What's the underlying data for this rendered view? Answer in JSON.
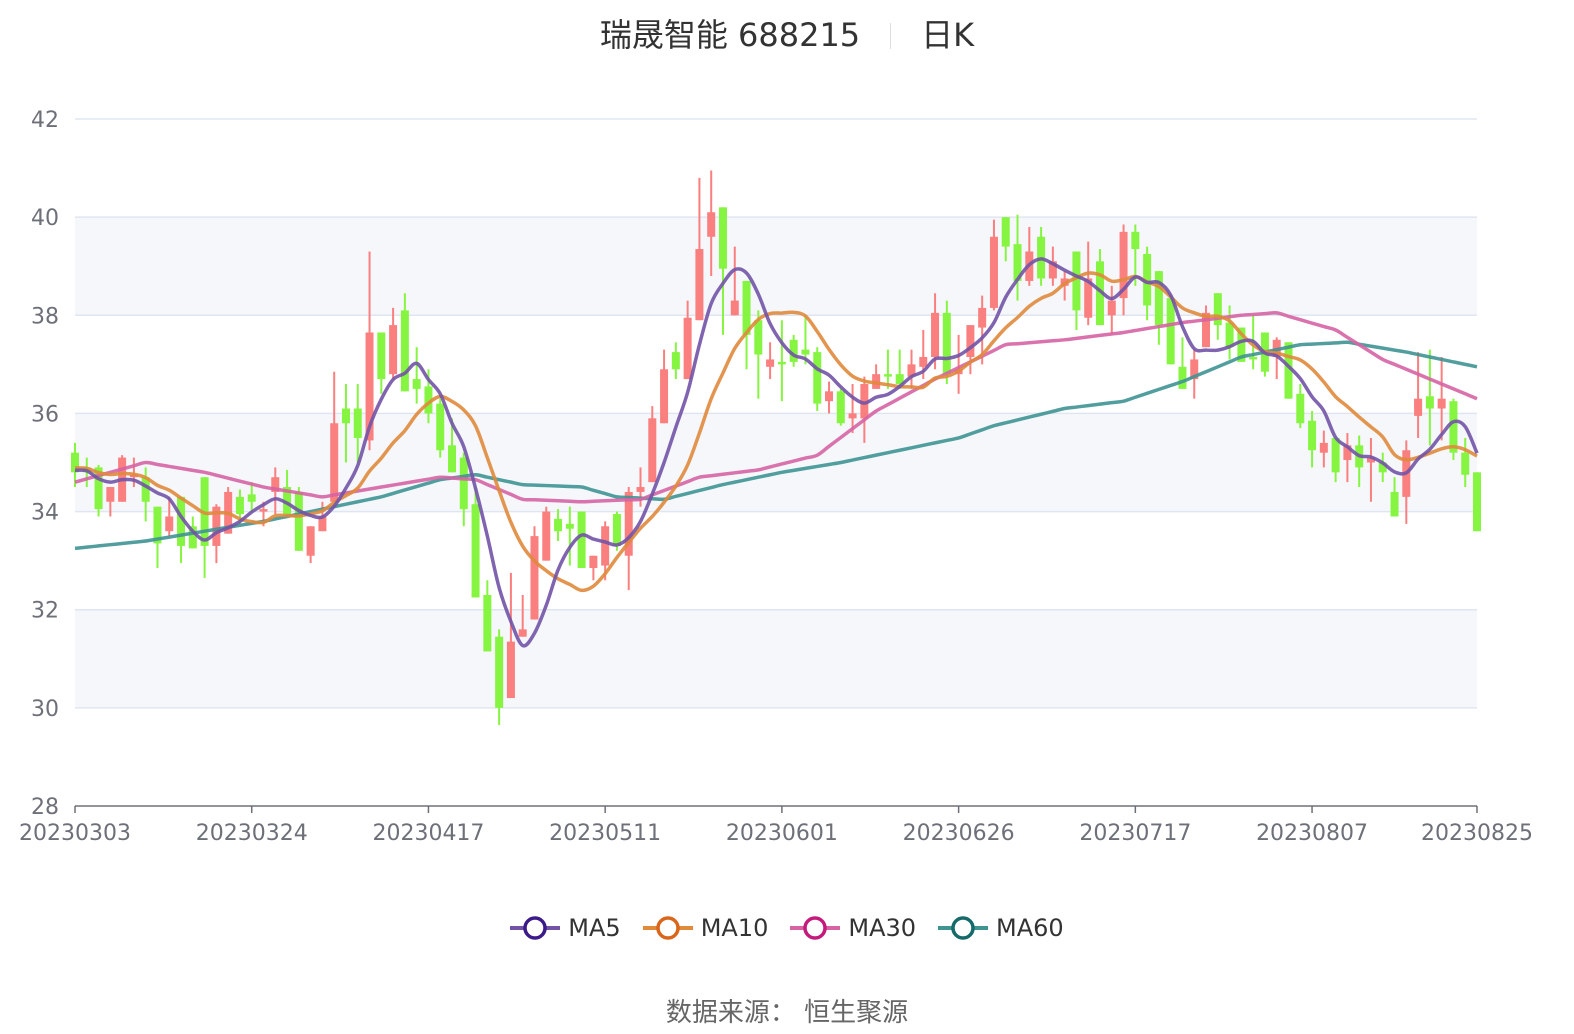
{
  "title": {
    "name": "瑞晟智能 688215",
    "period": "日K"
  },
  "source": "数据来源： 恒生聚源",
  "colors": {
    "up": "#fa7f7f",
    "down": "#86f542",
    "band": "#f5f7fb",
    "grid": "#e0e6f1",
    "axis": "#6e7079",
    "ma5": "#7253a6",
    "ma10": "#e08a3c",
    "ma30": "#d664a4",
    "ma60": "#3f9393"
  },
  "legend": [
    {
      "name": "MA5",
      "color": "#7253a6",
      "ring": "#3d1a8a"
    },
    {
      "name": "MA10",
      "color": "#e08a3c",
      "ring": "#d9661a"
    },
    {
      "name": "MA30",
      "color": "#d664a4",
      "ring": "#c41a7c"
    },
    {
      "name": "MA60",
      "color": "#3f9393",
      "ring": "#166a6a"
    }
  ],
  "chart_data": {
    "type": "candlestick",
    "title": "瑞晟智能 688215 日K",
    "ylim": [
      28,
      42
    ],
    "yticks": [
      "42",
      "40",
      "38",
      "36",
      "34",
      "32",
      "30",
      "28"
    ],
    "xtick_labels": [
      {
        "day": 0,
        "label": "20230303"
      },
      {
        "day": 15,
        "label": "20230324"
      },
      {
        "day": 30,
        "label": "20230417"
      },
      {
        "day": 45,
        "label": "20230511"
      },
      {
        "day": 60,
        "label": "20230601"
      },
      {
        "day": 75,
        "label": "20230626"
      },
      {
        "day": 90,
        "label": "20230717"
      },
      {
        "day": 105,
        "label": "20230807"
      },
      {
        "day": 119,
        "label": "20230825"
      }
    ],
    "ohlc_format": [
      "open",
      "close",
      "low",
      "high"
    ],
    "candles": [
      [
        35.2,
        34.8,
        34.5,
        35.4
      ],
      [
        34.9,
        34.8,
        34.5,
        35.1
      ],
      [
        34.9,
        34.05,
        33.9,
        34.95
      ],
      [
        34.2,
        34.5,
        33.9,
        34.5
      ],
      [
        34.2,
        35.1,
        34.2,
        35.15
      ],
      [
        34.7,
        34.75,
        34.5,
        35.1
      ],
      [
        34.7,
        34.2,
        33.8,
        34.9
      ],
      [
        34.1,
        33.35,
        32.85,
        34.1
      ],
      [
        33.6,
        33.9,
        33.5,
        34.3
      ],
      [
        34.3,
        33.3,
        32.95,
        34.3
      ],
      [
        33.7,
        33.25,
        33.25,
        33.9
      ],
      [
        34.7,
        33.3,
        32.65,
        34.7
      ],
      [
        33.3,
        34.1,
        32.95,
        34.15
      ],
      [
        33.55,
        34.4,
        33.55,
        34.5
      ],
      [
        34.3,
        33.95,
        33.75,
        34.45
      ],
      [
        34.35,
        34.2,
        34.0,
        34.6
      ],
      [
        34.0,
        34.05,
        33.7,
        34.2
      ],
      [
        34.4,
        34.7,
        33.95,
        34.9
      ],
      [
        34.5,
        33.95,
        33.9,
        34.85
      ],
      [
        34.4,
        33.2,
        33.2,
        34.5
      ],
      [
        33.1,
        33.7,
        32.95,
        33.7
      ],
      [
        33.6,
        33.9,
        33.6,
        34.2
      ],
      [
        34.2,
        35.8,
        34.2,
        36.85
      ],
      [
        36.1,
        35.8,
        35.0,
        36.6
      ],
      [
        36.1,
        35.5,
        35.0,
        36.6
      ],
      [
        35.45,
        37.65,
        35.25,
        39.3
      ],
      [
        37.65,
        36.7,
        36.4,
        37.65
      ],
      [
        36.8,
        37.8,
        36.7,
        38.15
      ],
      [
        38.1,
        36.45,
        36.45,
        38.45
      ],
      [
        36.7,
        36.5,
        36.2,
        37.35
      ],
      [
        36.55,
        36.0,
        35.8,
        36.9
      ],
      [
        36.2,
        35.25,
        35.1,
        36.3
      ],
      [
        35.35,
        34.8,
        34.8,
        35.9
      ],
      [
        35.1,
        34.05,
        33.7,
        35.2
      ],
      [
        34.15,
        32.25,
        32.25,
        34.5
      ],
      [
        32.3,
        31.15,
        31.15,
        32.6
      ],
      [
        31.45,
        30.0,
        29.65,
        31.6
      ],
      [
        30.2,
        31.35,
        30.2,
        32.75
      ],
      [
        31.45,
        31.6,
        31.45,
        32.3
      ],
      [
        31.8,
        33.5,
        31.8,
        33.7
      ],
      [
        33.0,
        34.0,
        33.0,
        34.1
      ],
      [
        33.85,
        33.6,
        33.4,
        34.05
      ],
      [
        33.75,
        33.65,
        32.9,
        34.1
      ],
      [
        34.0,
        32.85,
        32.85,
        34.0
      ],
      [
        32.85,
        33.1,
        32.6,
        33.1
      ],
      [
        32.9,
        33.7,
        32.6,
        33.8
      ],
      [
        33.95,
        33.3,
        33.2,
        34.0
      ],
      [
        33.1,
        34.4,
        32.4,
        34.5
      ],
      [
        34.4,
        34.5,
        34.1,
        34.9
      ],
      [
        34.6,
        35.9,
        34.6,
        36.15
      ],
      [
        35.8,
        36.9,
        35.8,
        37.3
      ],
      [
        37.25,
        36.9,
        36.7,
        37.45
      ],
      [
        36.7,
        37.95,
        36.7,
        38.3
      ],
      [
        37.9,
        39.35,
        37.9,
        40.8
      ],
      [
        39.6,
        40.1,
        38.8,
        40.95
      ],
      [
        40.2,
        38.95,
        37.6,
        40.2
      ],
      [
        38.0,
        38.3,
        38.0,
        39.4
      ],
      [
        38.7,
        37.6,
        36.9,
        38.7
      ],
      [
        37.9,
        37.2,
        36.3,
        38.1
      ],
      [
        36.95,
        37.1,
        36.7,
        37.45
      ],
      [
        37.05,
        37.0,
        36.25,
        37.9
      ],
      [
        37.5,
        37.05,
        36.95,
        37.6
      ],
      [
        37.3,
        37.2,
        37.0,
        38.0
      ],
      [
        37.25,
        36.2,
        36.05,
        37.35
      ],
      [
        36.25,
        36.45,
        36.0,
        36.65
      ],
      [
        36.45,
        35.8,
        35.75,
        36.5
      ],
      [
        35.9,
        36.0,
        35.6,
        36.6
      ],
      [
        35.9,
        36.6,
        35.4,
        36.75
      ],
      [
        36.5,
        36.8,
        36.5,
        37.0
      ],
      [
        36.8,
        36.75,
        36.5,
        37.3
      ],
      [
        36.8,
        36.6,
        36.5,
        37.3
      ],
      [
        36.75,
        37.0,
        36.5,
        37.3
      ],
      [
        36.95,
        37.15,
        36.7,
        37.7
      ],
      [
        37.15,
        38.05,
        36.9,
        38.45
      ],
      [
        38.05,
        36.8,
        36.6,
        38.3
      ],
      [
        36.8,
        36.9,
        36.4,
        37.6
      ],
      [
        37.15,
        37.8,
        36.8,
        37.8
      ],
      [
        37.75,
        38.15,
        37.0,
        38.4
      ],
      [
        38.15,
        39.6,
        38.1,
        39.95
      ],
      [
        40.0,
        39.4,
        39.1,
        40.0
      ],
      [
        39.45,
        38.7,
        38.3,
        40.05
      ],
      [
        38.7,
        39.3,
        38.6,
        39.8
      ],
      [
        39.6,
        38.75,
        38.6,
        39.8
      ],
      [
        38.75,
        39.1,
        38.6,
        39.4
      ],
      [
        38.6,
        38.75,
        38.3,
        38.9
      ],
      [
        39.3,
        38.1,
        37.7,
        39.3
      ],
      [
        37.95,
        38.75,
        37.8,
        39.5
      ],
      [
        39.1,
        37.8,
        37.8,
        39.35
      ],
      [
        38.0,
        38.3,
        37.6,
        38.6
      ],
      [
        38.35,
        39.7,
        38.0,
        39.85
      ],
      [
        39.7,
        39.35,
        38.6,
        39.85
      ],
      [
        39.25,
        38.2,
        37.9,
        39.4
      ],
      [
        38.9,
        37.8,
        37.4,
        38.9
      ],
      [
        38.35,
        37.0,
        37.0,
        38.4
      ],
      [
        36.95,
        36.5,
        36.5,
        37.55
      ],
      [
        36.7,
        37.1,
        36.3,
        37.3
      ],
      [
        37.35,
        38.05,
        37.35,
        38.2
      ],
      [
        38.45,
        37.8,
        37.5,
        38.45
      ],
      [
        37.85,
        37.35,
        37.1,
        38.2
      ],
      [
        37.75,
        37.05,
        37.05,
        37.75
      ],
      [
        37.15,
        37.1,
        36.9,
        38.0
      ],
      [
        37.65,
        36.85,
        36.75,
        37.65
      ],
      [
        37.15,
        37.5,
        36.7,
        37.55
      ],
      [
        37.45,
        36.3,
        36.3,
        37.45
      ],
      [
        36.4,
        35.8,
        35.7,
        36.6
      ],
      [
        35.85,
        35.25,
        34.9,
        36.05
      ],
      [
        35.2,
        35.4,
        34.9,
        35.65
      ],
      [
        35.5,
        34.8,
        34.6,
        35.5
      ],
      [
        35.05,
        35.35,
        34.6,
        35.6
      ],
      [
        35.35,
        34.9,
        34.5,
        35.55
      ],
      [
        35.0,
        35.1,
        34.2,
        35.5
      ],
      [
        35.0,
        34.8,
        34.6,
        35.2
      ],
      [
        34.4,
        33.9,
        33.9,
        34.7
      ],
      [
        34.3,
        35.25,
        33.75,
        35.45
      ],
      [
        35.95,
        36.3,
        35.5,
        37.25
      ],
      [
        36.35,
        36.1,
        35.35,
        37.3
      ],
      [
        36.1,
        36.3,
        35.45,
        37.15
      ],
      [
        36.25,
        35.2,
        35.05,
        36.3
      ],
      [
        35.2,
        34.75,
        34.5,
        35.5
      ],
      [
        34.8,
        33.6,
        33.6,
        34.8
      ]
    ],
    "ma_start": {
      "ma5": 34.85,
      "ma10": 34.9
    },
    "ma30_points": [
      [
        0,
        34.6
      ],
      [
        6,
        35.0
      ],
      [
        11,
        34.8
      ],
      [
        16,
        34.5
      ],
      [
        21,
        34.3
      ],
      [
        26,
        34.5
      ],
      [
        31,
        34.7
      ],
      [
        34,
        34.65
      ],
      [
        38,
        34.25
      ],
      [
        43,
        34.2
      ],
      [
        48,
        34.25
      ],
      [
        53,
        34.7
      ],
      [
        58,
        34.85
      ],
      [
        63,
        35.15
      ],
      [
        68,
        36.05
      ],
      [
        73,
        36.7
      ],
      [
        79,
        37.4
      ],
      [
        84,
        37.5
      ],
      [
        89,
        37.65
      ],
      [
        94,
        37.85
      ],
      [
        99,
        38.0
      ],
      [
        102,
        38.05
      ],
      [
        107,
        37.7
      ],
      [
        111,
        37.1
      ],
      [
        114,
        36.8
      ],
      [
        119,
        36.3
      ]
    ],
    "ma60_points": [
      [
        0,
        33.25
      ],
      [
        6,
        33.4
      ],
      [
        11,
        33.6
      ],
      [
        16,
        33.8
      ],
      [
        22,
        34.1
      ],
      [
        26,
        34.3
      ],
      [
        31,
        34.65
      ],
      [
        34,
        34.75
      ],
      [
        38,
        34.55
      ],
      [
        43,
        34.5
      ],
      [
        46,
        34.3
      ],
      [
        50,
        34.25
      ],
      [
        55,
        34.55
      ],
      [
        60,
        34.8
      ],
      [
        65,
        35.0
      ],
      [
        70,
        35.25
      ],
      [
        75,
        35.5
      ],
      [
        78,
        35.75
      ],
      [
        84,
        36.1
      ],
      [
        89,
        36.25
      ],
      [
        94,
        36.65
      ],
      [
        99,
        37.15
      ],
      [
        104,
        37.4
      ],
      [
        108,
        37.45
      ],
      [
        113,
        37.25
      ],
      [
        119,
        36.95
      ]
    ]
  }
}
